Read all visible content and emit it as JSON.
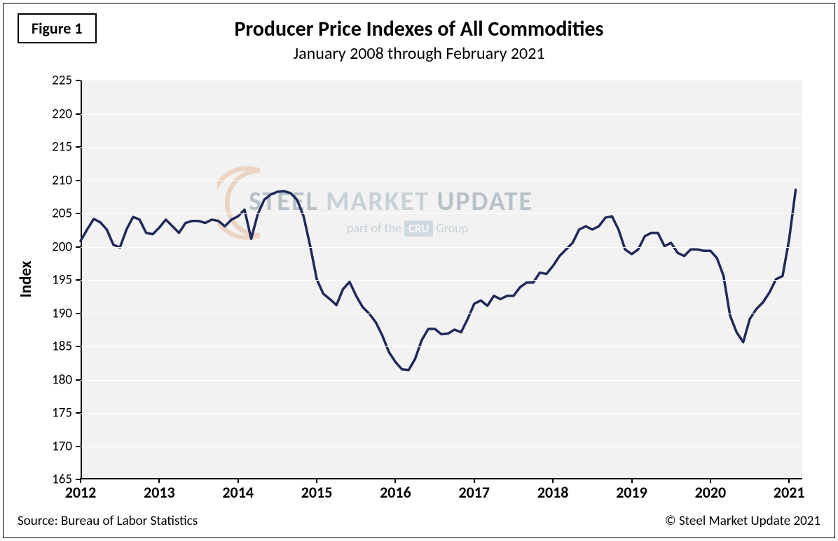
{
  "figure_label": "Figure 1",
  "title": "Producer Price Indexes of All Commodities",
  "subtitle": "January 2008 through February 2021",
  "y_axis_label": "Index",
  "source_text": "Source: Bureau of Labor Statistics",
  "copyright_text": "© Steel Market Update 2021",
  "watermark": {
    "main_a": "STEEL",
    "main_b": " MARKET ",
    "main_c": "UPDATE",
    "sub_prefix": "part of the ",
    "cru": "CRU",
    "sub_suffix": " Group"
  },
  "chart": {
    "type": "line",
    "line_color": "#1f2a5a",
    "line_width": 3.5,
    "background_color": "#f2f2f2",
    "grid_color": "#ffffff",
    "axis_color": "#000000",
    "ylim": [
      165,
      225
    ],
    "ytick_step": 5,
    "yticks": [
      165,
      170,
      175,
      180,
      185,
      190,
      195,
      200,
      205,
      210,
      215,
      220,
      225
    ],
    "xlim": [
      2012.0,
      2021.167
    ],
    "xticks": [
      2012,
      2013,
      2014,
      2015,
      2016,
      2017,
      2018,
      2019,
      2020,
      2021
    ],
    "xtick_labels": [
      "2012",
      "2013",
      "2014",
      "2015",
      "2016",
      "2017",
      "2018",
      "2019",
      "2020",
      "2021"
    ],
    "title_fontsize": 30,
    "subtitle_fontsize": 24,
    "ylabel_fontsize": 23,
    "tick_fontsize": 19,
    "xtick_fontsize": 22,
    "series": {
      "x": [
        2012.0,
        2012.083,
        2012.167,
        2012.25,
        2012.333,
        2012.417,
        2012.5,
        2012.583,
        2012.667,
        2012.75,
        2012.833,
        2012.917,
        2013.0,
        2013.083,
        2013.167,
        2013.25,
        2013.333,
        2013.417,
        2013.5,
        2013.583,
        2013.667,
        2013.75,
        2013.833,
        2013.917,
        2014.0,
        2014.083,
        2014.167,
        2014.25,
        2014.333,
        2014.417,
        2014.5,
        2014.583,
        2014.667,
        2014.75,
        2014.833,
        2014.917,
        2015.0,
        2015.083,
        2015.167,
        2015.25,
        2015.333,
        2015.417,
        2015.5,
        2015.583,
        2015.667,
        2015.75,
        2015.833,
        2015.917,
        2016.0,
        2016.083,
        2016.167,
        2016.25,
        2016.333,
        2016.417,
        2016.5,
        2016.583,
        2016.667,
        2016.75,
        2016.833,
        2016.917,
        2017.0,
        2017.083,
        2017.167,
        2017.25,
        2017.333,
        2017.417,
        2017.5,
        2017.583,
        2017.667,
        2017.75,
        2017.833,
        2017.917,
        2018.0,
        2018.083,
        2018.167,
        2018.25,
        2018.333,
        2018.417,
        2018.5,
        2018.583,
        2018.667,
        2018.75,
        2018.833,
        2018.917,
        2019.0,
        2019.083,
        2019.167,
        2019.25,
        2019.333,
        2019.417,
        2019.5,
        2019.583,
        2019.667,
        2019.75,
        2019.833,
        2019.917,
        2020.0,
        2020.083,
        2020.167,
        2020.25,
        2020.333,
        2020.417,
        2020.5,
        2020.583,
        2020.667,
        2020.75,
        2020.833,
        2020.917,
        2021.0,
        2021.083
      ],
      "y": [
        200.8,
        202.5,
        204.1,
        203.6,
        202.5,
        200.2,
        199.8,
        202.5,
        204.4,
        204.0,
        202.0,
        201.8,
        202.8,
        204.0,
        203.0,
        202.0,
        203.5,
        203.8,
        203.8,
        203.5,
        204.0,
        203.8,
        203.0,
        204.0,
        204.5,
        205.5,
        201.1,
        204.8,
        207.0,
        207.8,
        208.2,
        208.3,
        208.0,
        207.0,
        204.5,
        200.0,
        195.0,
        192.8,
        192.0,
        191.1,
        193.5,
        194.6,
        192.5,
        190.8,
        189.8,
        188.5,
        186.5,
        184.0,
        182.5,
        181.4,
        181.3,
        183.0,
        185.8,
        187.5,
        187.5,
        186.7,
        186.8,
        187.4,
        187.0,
        189.0,
        191.3,
        191.8,
        191.0,
        192.5,
        192.0,
        192.5,
        192.5,
        193.8,
        194.5,
        194.5,
        196.0,
        195.8,
        197.0,
        198.5,
        199.5,
        200.5,
        202.5,
        203.0,
        202.5,
        203.0,
        204.3,
        204.5,
        202.5,
        199.5,
        198.8,
        199.5,
        201.5,
        202.0,
        202.0,
        200.0,
        200.5,
        199.0,
        198.5,
        199.5,
        199.5,
        199.3,
        199.3,
        198.2,
        195.5,
        189.5,
        187.0,
        185.5,
        189.0,
        190.5,
        191.5,
        193.0,
        195.0,
        195.5,
        201.0,
        208.5
      ]
    }
  }
}
